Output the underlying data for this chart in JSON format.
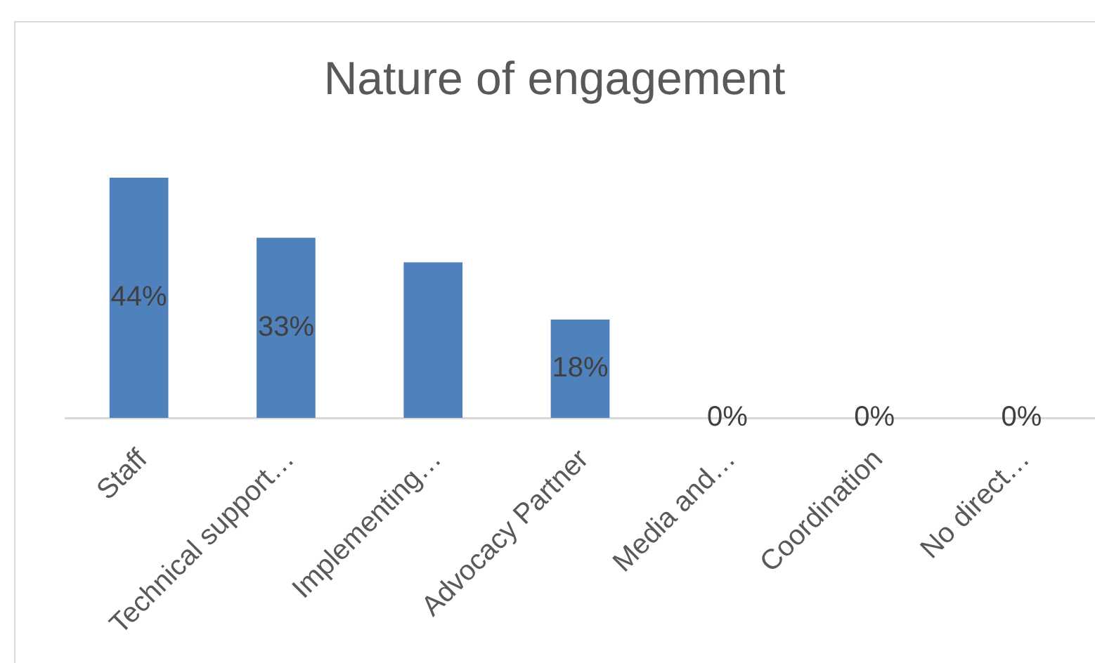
{
  "chart_data": {
    "type": "bar",
    "title": "Nature of engagement",
    "categories": [
      "Staff",
      "Technical support…",
      "Implementing…",
      "Advocacy Partner",
      "Media and…",
      "Coordination",
      "No direct…"
    ],
    "values": [
      44,
      33,
      28.5,
      18,
      0,
      0,
      0
    ],
    "value_labels": [
      "44%",
      "33%",
      null,
      "18%",
      "0%",
      "0%",
      "0%"
    ],
    "color": "#4f81bd",
    "tick_labels": "x"
  }
}
